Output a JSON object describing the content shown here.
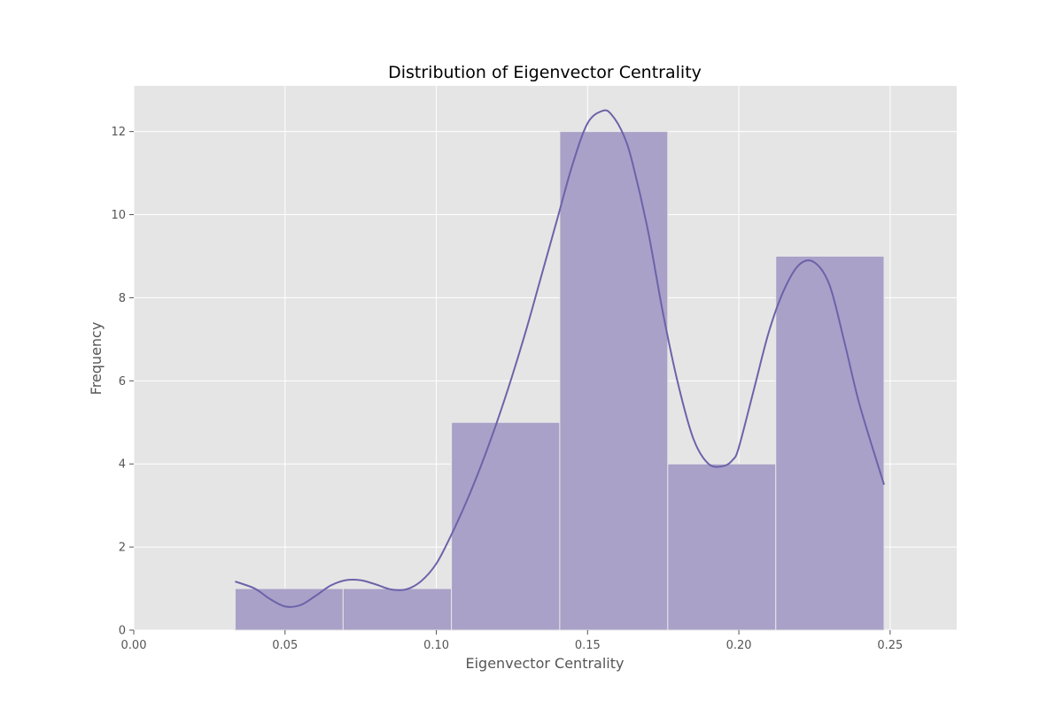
{
  "chart_data": {
    "type": "bar",
    "title": "Distribution of Eigenvector Centrality",
    "xlabel": "Eigenvector Centrality",
    "ylabel": "Frequency",
    "xlim": [
      0.0,
      0.272
    ],
    "ylim": [
      0,
      13.1
    ],
    "xticks": [
      "0.00",
      "0.05",
      "0.10",
      "0.15",
      "0.20",
      "0.25"
    ],
    "yticks": [
      "0",
      "2",
      "4",
      "6",
      "8",
      "10",
      "12"
    ],
    "grid": true,
    "bins": [
      {
        "start": 0.0335,
        "end": 0.0692,
        "count": 1
      },
      {
        "start": 0.0692,
        "end": 0.105,
        "count": 1
      },
      {
        "start": 0.105,
        "end": 0.1408,
        "count": 5
      },
      {
        "start": 0.1408,
        "end": 0.1765,
        "count": 12
      },
      {
        "start": 0.1765,
        "end": 0.2122,
        "count": 4
      },
      {
        "start": 0.2122,
        "end": 0.248,
        "count": 9
      }
    ],
    "kde": {
      "x": [
        0.0335,
        0.04,
        0.045,
        0.05,
        0.055,
        0.06,
        0.065,
        0.07,
        0.075,
        0.08,
        0.085,
        0.09,
        0.095,
        0.1,
        0.105,
        0.11,
        0.115,
        0.12,
        0.125,
        0.13,
        0.135,
        0.14,
        0.145,
        0.15,
        0.155,
        0.158,
        0.162,
        0.165,
        0.17,
        0.175,
        0.18,
        0.185,
        0.19,
        0.195,
        0.198,
        0.2,
        0.205,
        0.21,
        0.215,
        0.22,
        0.225,
        0.23,
        0.235,
        0.24,
        0.248
      ],
      "y": [
        1.17,
        1.0,
        0.75,
        0.57,
        0.6,
        0.82,
        1.07,
        1.2,
        1.2,
        1.1,
        0.98,
        0.98,
        1.18,
        1.6,
        2.3,
        3.1,
        4.0,
        5.0,
        6.1,
        7.3,
        8.6,
        9.9,
        11.2,
        12.2,
        12.5,
        12.4,
        11.9,
        11.2,
        9.6,
        7.6,
        5.9,
        4.6,
        4.0,
        3.95,
        4.1,
        4.4,
        5.8,
        7.2,
        8.2,
        8.8,
        8.85,
        8.3,
        6.9,
        5.4,
        3.5
      ]
    },
    "colors": {
      "bar_fill": "#a9a1c8",
      "bar_edge": "#e6e6e6",
      "kde_line": "#6c63a9",
      "plot_bg": "#e5e5e5",
      "grid": "#ffffff",
      "axis_text": "#555555"
    }
  }
}
